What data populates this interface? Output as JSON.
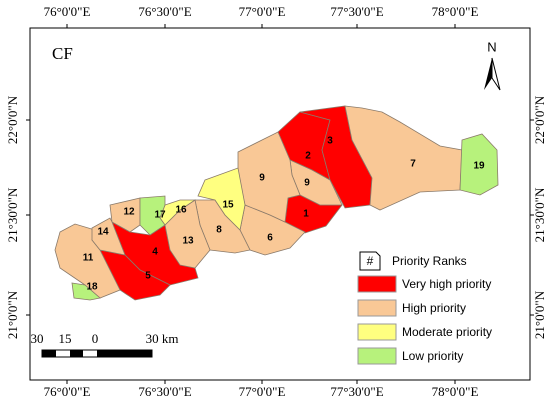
{
  "map": {
    "panel_label": "CF",
    "north": "N",
    "lon_labels": [
      "76°0'0\"E",
      "76°30'0\"E",
      "77°0'0\"E",
      "77°30'0\"E",
      "78°0'0\"E"
    ],
    "lat_labels": [
      "22°0'0\"N",
      "21°30'0\"N",
      "21°0'0\"N"
    ],
    "regions": [
      {
        "label": "1",
        "color": "#ff0000"
      },
      {
        "label": "2",
        "color": "#ff0000"
      },
      {
        "label": "3",
        "color": "#ff0000"
      },
      {
        "label": "4",
        "color": "#ff0000"
      },
      {
        "label": "5",
        "color": "#ff0000"
      },
      {
        "label": "6",
        "color": "#f9c896"
      },
      {
        "label": "7",
        "color": "#f9c896"
      },
      {
        "label": "8",
        "color": "#f9c896"
      },
      {
        "label": "9",
        "color": "#f9c896"
      },
      {
        "label": "9",
        "color": "#f9c896"
      },
      {
        "label": "11",
        "color": "#f9c896"
      },
      {
        "label": "12",
        "color": "#f9c896"
      },
      {
        "label": "13",
        "color": "#f9c896"
      },
      {
        "label": "14",
        "color": "#f9c896"
      },
      {
        "label": "15",
        "color": "#ffff80"
      },
      {
        "label": "16",
        "color": "#ffff80"
      },
      {
        "label": "17",
        "color": "#b7f27c"
      },
      {
        "label": "18",
        "color": "#b7f27c"
      },
      {
        "label": "19",
        "color": "#b7f27c"
      }
    ],
    "legend": {
      "symbol": "#",
      "title": "Priority Ranks",
      "items": [
        {
          "name": "Very high priority",
          "color": "#ff0000"
        },
        {
          "name": "High priority",
          "color": "#f9c896"
        },
        {
          "name": "Moderate priority",
          "color": "#ffff80"
        },
        {
          "name": "Low priority",
          "color": "#b7f27c"
        }
      ]
    },
    "scale": {
      "labels": [
        "30",
        "15",
        "0",
        "30 km"
      ]
    }
  }
}
